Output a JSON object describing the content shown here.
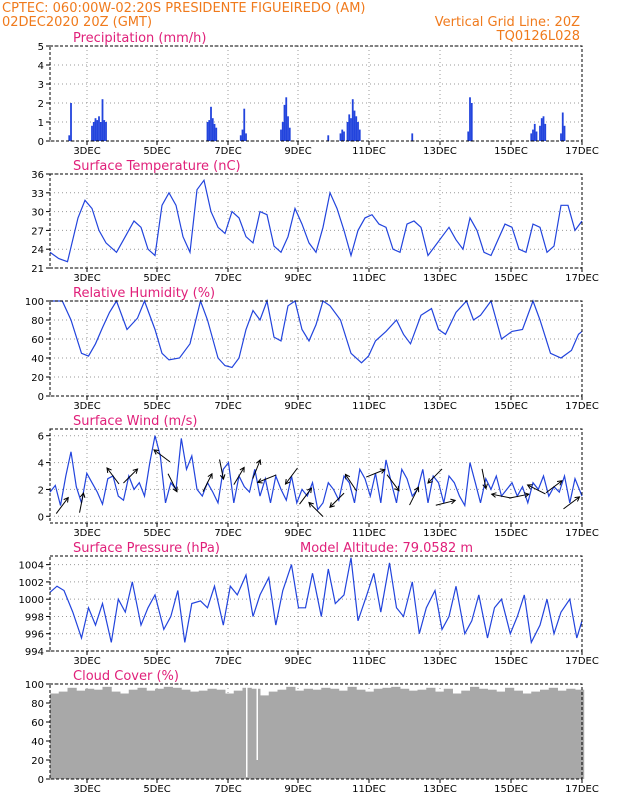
{
  "header": {
    "line1_left": "CPTEC:   060:00W-02:20S   PRESIDENTE FIGUEIREDO (AM)",
    "line2_left": "02DEC2020 20Z (GMT)",
    "line2_right": "Vertical Grid Line: 20Z",
    "line3_right": "TQ0126L028"
  },
  "colors": {
    "header": "#f07a1c",
    "title": "#e0207a",
    "series": "#2244dd",
    "cloud": "#a8a8a8",
    "frame": "#000000",
    "grid": "#999999",
    "arrow": "#000000"
  },
  "chart_data": [
    {
      "type": "bar",
      "title": "Precipitation (mm/h)",
      "x_range": [
        0,
        15.2
      ],
      "ylim": [
        0,
        5
      ],
      "yticks": [
        "0",
        "1",
        "2",
        "3",
        "4",
        "5"
      ],
      "xtick_labels": [
        "3DEC",
        "5DEC",
        "7DEC",
        "9DEC",
        "11DEC",
        "13DEC",
        "15DEC",
        "17DEC"
      ],
      "grid": "dotted",
      "x": [
        0.55,
        0.6,
        1.2,
        1.25,
        1.3,
        1.35,
        1.4,
        1.45,
        1.5,
        1.55,
        1.6,
        4.5,
        4.55,
        4.6,
        4.65,
        4.7,
        4.75,
        5.45,
        5.5,
        5.55,
        5.6,
        6.6,
        6.65,
        6.7,
        6.75,
        6.8,
        6.85,
        7.95,
        8.3,
        8.35,
        8.4,
        8.5,
        8.55,
        8.6,
        8.65,
        8.7,
        8.75,
        8.8,
        8.85,
        10.35,
        11.95,
        12.0,
        12.05,
        13.75,
        13.8,
        13.85,
        13.9,
        14.0,
        14.05,
        14.1,
        14.15,
        14.6,
        14.65,
        14.7
      ],
      "values": [
        0.3,
        2.0,
        0.8,
        1.0,
        1.2,
        1.1,
        1.3,
        1.0,
        2.2,
        1.1,
        1.0,
        1.0,
        1.1,
        1.8,
        1.2,
        0.9,
        0.7,
        0.3,
        0.6,
        1.7,
        0.4,
        0.6,
        1.0,
        1.9,
        2.3,
        1.3,
        0.7,
        0.3,
        0.4,
        0.6,
        0.5,
        1.0,
        1.4,
        1.2,
        2.2,
        1.6,
        1.3,
        1.0,
        0.6,
        0.4,
        0.5,
        2.3,
        2.0,
        0.4,
        0.6,
        0.9,
        0.5,
        0.8,
        1.2,
        1.3,
        0.9,
        0.4,
        1.5,
        0.8
      ]
    },
    {
      "type": "line",
      "title": "Surface Temperature (nC)",
      "x_range": [
        0,
        15.2
      ],
      "ylim": [
        21,
        36
      ],
      "yticks": [
        "21",
        "24",
        "27",
        "30",
        "33",
        "36"
      ],
      "xtick_labels": [
        "3DEC",
        "5DEC",
        "7DEC",
        "9DEC",
        "11DEC",
        "13DEC",
        "15DEC",
        "17DEC"
      ],
      "grid": "dotted",
      "x": [
        0,
        0.25,
        0.5,
        0.8,
        1.0,
        1.2,
        1.4,
        1.6,
        1.9,
        2.1,
        2.4,
        2.6,
        2.8,
        3.0,
        3.2,
        3.4,
        3.6,
        3.8,
        4.0,
        4.2,
        4.4,
        4.6,
        4.8,
        5.0,
        5.2,
        5.4,
        5.6,
        5.8,
        6.0,
        6.2,
        6.4,
        6.6,
        6.8,
        7.0,
        7.2,
        7.4,
        7.6,
        7.8,
        8.0,
        8.2,
        8.4,
        8.6,
        8.8,
        9.0,
        9.2,
        9.4,
        9.6,
        9.8,
        10.0,
        10.2,
        10.4,
        10.6,
        10.8,
        11.0,
        11.2,
        11.4,
        11.6,
        11.8,
        12.0,
        12.2,
        12.4,
        12.6,
        12.8,
        13.0,
        13.2,
        13.4,
        13.6,
        13.8,
        14.0,
        14.2,
        14.4,
        14.6,
        14.8,
        15.0,
        15.2
      ],
      "values": [
        23.5,
        22.5,
        22,
        29,
        31.8,
        30.5,
        27,
        25,
        23.5,
        25.5,
        28.5,
        27.5,
        24,
        23,
        31,
        33,
        31,
        26,
        23.5,
        33.5,
        35,
        30,
        27.5,
        26.5,
        30,
        29,
        26,
        25,
        30,
        29.5,
        24.5,
        23.5,
        26,
        30.5,
        28,
        25,
        23.5,
        27.5,
        33,
        30.5,
        27,
        23,
        27,
        29,
        29.5,
        28,
        27.5,
        24,
        23.5,
        28,
        28.5,
        27.5,
        23,
        24.5,
        26,
        27.5,
        25.5,
        24,
        29,
        27,
        23.5,
        23,
        25.5,
        28,
        27.5,
        24,
        23.5,
        28,
        27.5,
        23.5,
        24.5,
        31,
        31,
        27,
        28.5
      ]
    },
    {
      "type": "line",
      "title": "Relative Humidity (%)",
      "x_range": [
        0,
        15.2
      ],
      "ylim": [
        0,
        100
      ],
      "yticks": [
        "0",
        "20",
        "40",
        "60",
        "80",
        "100"
      ],
      "xtick_labels": [
        "3DEC",
        "5DEC",
        "7DEC",
        "9DEC",
        "11DEC",
        "13DEC",
        "15DEC",
        "17DEC"
      ],
      "grid": "dotted",
      "x": [
        0,
        0.35,
        0.6,
        0.9,
        1.1,
        1.3,
        1.5,
        1.7,
        1.9,
        2.2,
        2.5,
        2.7,
        3.0,
        3.2,
        3.4,
        3.7,
        4.0,
        4.3,
        4.5,
        4.8,
        5.0,
        5.2,
        5.4,
        5.6,
        5.8,
        6.0,
        6.2,
        6.4,
        6.6,
        6.8,
        7.0,
        7.2,
        7.4,
        7.6,
        7.8,
        8.0,
        8.3,
        8.6,
        8.9,
        9.1,
        9.3,
        9.6,
        9.9,
        10.1,
        10.3,
        10.6,
        10.9,
        11.1,
        11.3,
        11.6,
        11.9,
        12.1,
        12.3,
        12.6,
        12.9,
        13.2,
        13.5,
        13.8,
        14.0,
        14.3,
        14.6,
        14.9,
        15.1,
        15.2
      ],
      "values": [
        100,
        100,
        80,
        45,
        42,
        55,
        72,
        88,
        100,
        70,
        82,
        100,
        70,
        45,
        38,
        40,
        55,
        100,
        80,
        40,
        32,
        30,
        40,
        70,
        90,
        80,
        100,
        62,
        58,
        95,
        100,
        70,
        58,
        75,
        100,
        95,
        80,
        45,
        35,
        42,
        58,
        68,
        80,
        65,
        55,
        85,
        92,
        70,
        65,
        88,
        100,
        80,
        85,
        100,
        60,
        68,
        70,
        100,
        80,
        45,
        40,
        48,
        65,
        68
      ]
    },
    {
      "type": "line",
      "title": "Surface Wind (m/s)",
      "x_range": [
        0,
        15.2
      ],
      "ylim": [
        -0.5,
        6.5
      ],
      "yticks": [
        "0",
        "2",
        "4",
        "6"
      ],
      "xtick_labels": [
        "3DEC",
        "5DEC",
        "7DEC",
        "9DEC",
        "11DEC",
        "13DEC",
        "15DEC",
        "17DEC"
      ],
      "grid": "dotted",
      "x": [
        0,
        0.15,
        0.3,
        0.45,
        0.6,
        0.75,
        0.9,
        1.05,
        1.2,
        1.35,
        1.5,
        1.65,
        1.8,
        1.95,
        2.1,
        2.25,
        2.4,
        2.55,
        2.7,
        2.85,
        3.0,
        3.15,
        3.3,
        3.45,
        3.6,
        3.75,
        3.9,
        4.05,
        4.2,
        4.35,
        4.5,
        4.65,
        4.8,
        4.95,
        5.1,
        5.25,
        5.4,
        5.55,
        5.7,
        5.85,
        6.0,
        6.15,
        6.3,
        6.45,
        6.6,
        6.75,
        6.9,
        7.05,
        7.2,
        7.35,
        7.5,
        7.65,
        7.8,
        7.95,
        8.1,
        8.25,
        8.4,
        8.55,
        8.7,
        8.85,
        9.0,
        9.15,
        9.3,
        9.45,
        9.6,
        9.75,
        9.9,
        10.05,
        10.2,
        10.35,
        10.5,
        10.65,
        10.8,
        10.95,
        11.1,
        11.25,
        11.4,
        11.55,
        11.7,
        11.85,
        12.0,
        12.15,
        12.3,
        12.45,
        12.6,
        12.75,
        12.9,
        13.05,
        13.2,
        13.35,
        13.5,
        13.65,
        13.8,
        13.95,
        14.1,
        14.25,
        14.4,
        14.55,
        14.7,
        14.85,
        15.0,
        15.2
      ],
      "values": [
        1.8,
        2.3,
        0.8,
        3.0,
        4.8,
        2.2,
        1.0,
        3.2,
        2.5,
        1.8,
        0.9,
        2.8,
        3.0,
        1.5,
        1.2,
        3.0,
        2.0,
        2.5,
        1.5,
        4.0,
        6.0,
        4.5,
        1.0,
        2.5,
        2.0,
        5.8,
        3.5,
        4.5,
        2.0,
        1.5,
        2.5,
        1.8,
        1.0,
        3.5,
        4.0,
        1.0,
        3.0,
        2.2,
        1.8,
        3.5,
        1.5,
        2.8,
        1.0,
        3.0,
        2.0,
        1.2,
        3.0,
        1.0,
        2.0,
        1.5,
        2.5,
        0.5,
        1.0,
        2.5,
        2.0,
        1.2,
        3.0,
        2.5,
        1.0,
        3.5,
        2.8,
        1.5,
        3.2,
        1.0,
        4.2,
        2.5,
        1.0,
        3.5,
        2.8,
        1.5,
        2.0,
        3.5,
        1.0,
        3.0,
        2.5,
        1.0,
        3.0,
        2.5,
        1.5,
        0.8,
        4.0,
        2.5,
        1.0,
        2.8,
        2.0,
        3.0,
        1.5,
        2.0,
        2.5,
        1.5,
        2.2,
        1.0,
        2.5,
        2.0,
        3.0,
        1.5,
        2.2,
        1.8,
        3.0,
        1.0,
        2.8,
        1.5
      ],
      "arrows": {
        "x": [
          0.35,
          0.9,
          1.8,
          2.3,
          3.2,
          3.5,
          4.5,
          4.9,
          5.4,
          5.9,
          6.2,
          6.9,
          7.3,
          7.6,
          8.2,
          8.6,
          9.3,
          9.8,
          10.4,
          11.0,
          11.3,
          12.4,
          12.9,
          13.4,
          13.9,
          14.4,
          14.9
        ],
        "u": [
          0.3,
          0.1,
          -0.3,
          0.3,
          -0.4,
          0.2,
          0.2,
          0.1,
          0.3,
          0.2,
          -0.5,
          -0.3,
          0.3,
          -0.4,
          -0.3,
          -0.2,
          0.5,
          0.3,
          0.2,
          -0.3,
          0.4,
          0.1,
          -0.5,
          0.5,
          -0.4,
          0.4,
          0.4
        ],
        "v": [
          0.4,
          0.5,
          0.4,
          0.3,
          0.3,
          -0.4,
          0.4,
          -0.5,
          0.5,
          0.5,
          -0.2,
          -0.4,
          0.4,
          0.4,
          -0.3,
          0.3,
          0.2,
          -0.4,
          0.4,
          -0.3,
          0.1,
          -0.5,
          0.1,
          0.1,
          0.2,
          0.3,
          0.3
        ]
      }
    },
    {
      "type": "line",
      "title": "Surface Pressure (hPa)",
      "annotation": "Model Altitude: 79.0582 m",
      "x_range": [
        0,
        15.2
      ],
      "ylim": [
        994,
        1005
      ],
      "yticks": [
        "994",
        "996",
        "998",
        "1000",
        "1002",
        "1004"
      ],
      "xtick_labels": [
        "3DEC",
        "5DEC",
        "7DEC",
        "9DEC",
        "11DEC",
        "13DEC",
        "15DEC",
        "17DEC"
      ],
      "grid": "dotted",
      "x": [
        0,
        0.2,
        0.4,
        0.65,
        0.9,
        1.1,
        1.3,
        1.5,
        1.75,
        1.95,
        2.15,
        2.35,
        2.6,
        2.8,
        3.0,
        3.25,
        3.45,
        3.65,
        3.85,
        4.05,
        4.3,
        4.5,
        4.7,
        4.95,
        5.15,
        5.35,
        5.6,
        5.8,
        6.0,
        6.25,
        6.45,
        6.65,
        6.9,
        7.1,
        7.3,
        7.5,
        7.75,
        7.95,
        8.15,
        8.4,
        8.6,
        8.8,
        9.05,
        9.25,
        9.45,
        9.7,
        9.9,
        10.1,
        10.35,
        10.55,
        10.75,
        11.0,
        11.2,
        11.4,
        11.6,
        11.85,
        12.05,
        12.25,
        12.5,
        12.7,
        12.9,
        13.15,
        13.35,
        13.55,
        13.75,
        14.0,
        14.2,
        14.4,
        14.6,
        14.85,
        15.05,
        15.2
      ],
      "values": [
        1000.8,
        1001.5,
        1001.0,
        998.5,
        995.5,
        999.0,
        997.0,
        999.5,
        995.0,
        1000.0,
        998.5,
        1002.0,
        997.0,
        999.0,
        1000.5,
        996.5,
        998.0,
        1001.0,
        995.0,
        999.5,
        999.8,
        999.0,
        1001.5,
        997.0,
        1001.5,
        1000.5,
        1002.8,
        998.0,
        1000.5,
        1002.5,
        997.0,
        1001.0,
        1004.0,
        999.0,
        999.0,
        1003.0,
        998.0,
        1003.5,
        999.5,
        1000.5,
        1004.8,
        997.5,
        1000.5,
        1003.0,
        998.5,
        1004.2,
        999.0,
        998.0,
        1002.0,
        996.0,
        999.0,
        1001.0,
        996.5,
        998.0,
        1001.5,
        996.0,
        997.5,
        1000.5,
        995.5,
        999.0,
        1000.0,
        996.0,
        998.0,
        1000.5,
        995.0,
        997.0,
        1000.0,
        996.0,
        998.5,
        1000.0,
        995.5,
        997.5
      ]
    },
    {
      "type": "bar",
      "title": "Cloud Cover (%)",
      "x_range": [
        0,
        15.2
      ],
      "ylim": [
        0,
        100
      ],
      "yticks": [
        "0",
        "20",
        "40",
        "60",
        "80",
        "100"
      ],
      "xtick_labels": [
        "3DEC",
        "5DEC",
        "7DEC",
        "9DEC",
        "11DEC",
        "13DEC",
        "15DEC",
        "17DEC"
      ],
      "grid": "dotted",
      "x": [
        0,
        0.25,
        0.5,
        0.75,
        1.0,
        1.25,
        1.5,
        1.75,
        2.0,
        2.25,
        2.5,
        2.75,
        3.0,
        3.25,
        3.5,
        3.75,
        4.0,
        4.25,
        4.5,
        4.75,
        5.0,
        5.25,
        5.5,
        5.75,
        6.0,
        6.25,
        6.5,
        6.75,
        7.0,
        7.25,
        7.5,
        7.75,
        8.0,
        8.25,
        8.5,
        8.75,
        9.0,
        9.25,
        9.5,
        9.75,
        10.0,
        10.25,
        10.5,
        10.75,
        11.0,
        11.25,
        11.5,
        11.75,
        12.0,
        12.25,
        12.5,
        12.75,
        13.0,
        13.25,
        13.5,
        13.75,
        14.0,
        14.25,
        14.5,
        14.75,
        15.0
      ],
      "values": [
        90,
        92,
        96,
        93,
        95,
        94,
        97,
        92,
        90,
        94,
        96,
        93,
        95,
        97,
        96,
        94,
        92,
        93,
        95,
        94,
        90,
        93,
        96,
        95,
        88,
        92,
        94,
        97,
        93,
        95,
        94,
        96,
        95,
        93,
        97,
        94,
        92,
        95,
        96,
        97,
        95,
        93,
        94,
        96,
        92,
        95,
        90,
        93,
        97,
        95,
        94,
        92,
        96,
        93,
        90,
        92,
        94,
        96,
        93,
        95,
        94
      ],
      "dips": {
        "x": [
          5.6,
          5.9
        ],
        "values": [
          2,
          20
        ]
      }
    }
  ]
}
